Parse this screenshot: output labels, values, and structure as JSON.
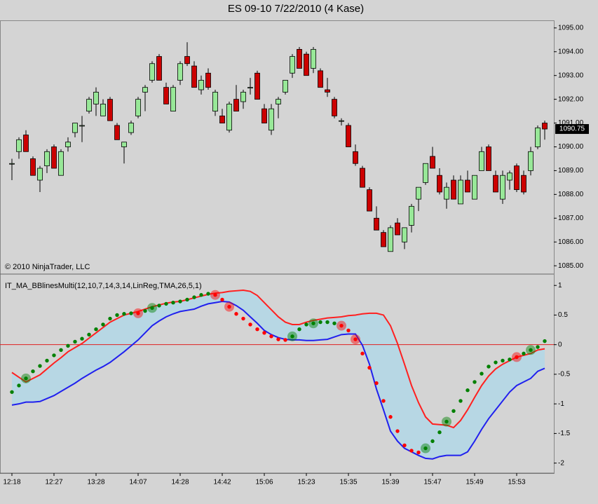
{
  "title": "ES 09-10  7/22/2010 (4 Kase)",
  "chart_data": [
    {
      "type": "candlestick",
      "annotation": "© 2010 NinjaTrader, LLC",
      "categories": [
        "12:18",
        null,
        null,
        null,
        null,
        null,
        "12:27",
        null,
        null,
        null,
        null,
        null,
        "13:28",
        null,
        null,
        null,
        null,
        null,
        "14:07",
        null,
        null,
        null,
        null,
        null,
        "14:28",
        null,
        null,
        null,
        null,
        null,
        "14:42",
        null,
        null,
        null,
        null,
        null,
        "15:06",
        null,
        null,
        null,
        null,
        null,
        "15:23",
        null,
        null,
        null,
        null,
        null,
        "15:35",
        null,
        null,
        null,
        null,
        null,
        "15:39",
        null,
        null,
        null,
        null,
        null,
        "15:47",
        null,
        null,
        null,
        null,
        null,
        "15:49",
        null,
        null,
        null,
        null,
        null,
        "15:53",
        null,
        null,
        null,
        null
      ],
      "open": [
        1089.3,
        1089.8,
        1090.5,
        1089.5,
        1088.6,
        1089.2,
        1090.0,
        1088.8,
        1090.0,
        1090.6,
        1090.9,
        1091.5,
        1091.8,
        1091.3,
        1092.0,
        1090.9,
        1090.0,
        1090.6,
        1091.3,
        1092.3,
        1092.8,
        1093.8,
        1092.5,
        1091.5,
        1092.8,
        1093.8,
        1093.4,
        1092.4,
        1093.1,
        1091.5,
        1091.3,
        1090.7,
        1092.0,
        1091.9,
        1092.5,
        1093.1,
        1091.6,
        1090.7,
        1091.8,
        1092.3,
        1093.1,
        1094.1,
        1093.9,
        1093.3,
        1093.2,
        1092.4,
        1092.0,
        1091.1,
        1090.9,
        1089.8,
        1089.1,
        1088.2,
        1087.0,
        1086.4,
        1085.6,
        1086.8,
        1086.0,
        1086.7,
        1087.8,
        1088.5,
        1089.6,
        1088.8,
        1087.8,
        1088.6,
        1087.6,
        1088.6,
        1087.8,
        1089.0,
        1090.0,
        1088.8,
        1087.8,
        1088.6,
        1089.2,
        1088.8,
        1089.0,
        1090.0,
        1091.0
      ],
      "high": [
        1089.5,
        1090.4,
        1090.7,
        1089.6,
        1089.2,
        1089.9,
        1090.1,
        1089.9,
        1090.4,
        1091.0,
        1091.3,
        1092.1,
        1092.5,
        1092.0,
        1092.1,
        1091.0,
        1090.2,
        1091.1,
        1092.1,
        1092.6,
        1093.6,
        1093.9,
        1092.7,
        1092.6,
        1093.6,
        1094.4,
        1093.6,
        1093.0,
        1093.3,
        1092.4,
        1091.6,
        1091.9,
        1092.6,
        1092.4,
        1092.9,
        1093.2,
        1091.8,
        1091.8,
        1092.1,
        1092.8,
        1093.9,
        1094.2,
        1094.0,
        1094.2,
        1093.3,
        1092.9,
        1092.1,
        1091.2,
        1091.0,
        1090.1,
        1089.2,
        1088.3,
        1087.5,
        1086.5,
        1086.7,
        1087.0,
        1086.6,
        1087.6,
        1088.3,
        1089.3,
        1090.0,
        1089.1,
        1088.5,
        1088.8,
        1088.8,
        1089.0,
        1088.8,
        1090.0,
        1090.1,
        1089.0,
        1089.0,
        1089.0,
        1089.3,
        1089.0,
        1090.0,
        1090.9,
        1091.1
      ],
      "low": [
        1088.6,
        1089.5,
        1089.8,
        1088.8,
        1088.1,
        1088.9,
        1089.1,
        1088.8,
        1089.8,
        1090.4,
        1090.2,
        1091.4,
        1091.3,
        1091.3,
        1091.1,
        1090.3,
        1089.3,
        1090.5,
        1091.2,
        1091.5,
        1092.7,
        1092.8,
        1091.8,
        1091.5,
        1092.6,
        1093.4,
        1092.5,
        1092.2,
        1092.4,
        1091.3,
        1091.0,
        1090.6,
        1091.5,
        1091.6,
        1092.2,
        1092.0,
        1091.0,
        1090.5,
        1091.2,
        1092.2,
        1092.9,
        1093.3,
        1093.0,
        1093.1,
        1092.5,
        1092.1,
        1091.2,
        1090.9,
        1090.0,
        1089.2,
        1088.3,
        1087.3,
        1086.5,
        1085.8,
        1085.6,
        1086.3,
        1085.7,
        1086.4,
        1087.3,
        1088.4,
        1089.1,
        1088.0,
        1087.4,
        1087.8,
        1087.6,
        1088.1,
        1087.8,
        1089.0,
        1089.0,
        1088.1,
        1087.6,
        1088.2,
        1088.1,
        1088.0,
        1088.8,
        1089.9,
        1090.3
      ],
      "close": [
        1089.3,
        1090.3,
        1089.8,
        1088.8,
        1089.1,
        1089.8,
        1089.1,
        1089.8,
        1090.2,
        1091.0,
        1090.9,
        1092.0,
        1092.3,
        1091.8,
        1091.1,
        1090.3,
        1090.2,
        1091.0,
        1092.0,
        1092.5,
        1093.5,
        1092.8,
        1091.8,
        1092.5,
        1093.5,
        1093.5,
        1092.5,
        1092.8,
        1092.5,
        1092.3,
        1091.0,
        1091.8,
        1091.5,
        1092.3,
        1092.5,
        1092.0,
        1091.0,
        1091.6,
        1092.0,
        1092.8,
        1093.8,
        1093.3,
        1093.0,
        1094.1,
        1092.5,
        1092.3,
        1091.3,
        1091.1,
        1090.0,
        1089.3,
        1088.3,
        1087.3,
        1086.5,
        1085.8,
        1086.6,
        1086.3,
        1086.6,
        1087.5,
        1088.3,
        1089.3,
        1089.1,
        1088.1,
        1088.3,
        1087.8,
        1088.6,
        1088.1,
        1088.8,
        1089.8,
        1089.0,
        1088.1,
        1088.8,
        1088.9,
        1088.2,
        1088.1,
        1089.8,
        1090.8,
        1090.75
      ],
      "up_color": "#98e898",
      "down_color": "#cc0000",
      "ylim": [
        1084.68,
        1095.29
      ],
      "yticks": [
        {
          "value": 1085,
          "label": "1085.00"
        },
        {
          "value": 1086,
          "label": "1086.00"
        },
        {
          "value": 1087,
          "label": "1087.00"
        },
        {
          "value": 1088,
          "label": "1088.00"
        },
        {
          "value": 1089,
          "label": "1089.00"
        },
        {
          "value": 1090,
          "label": "1090.00"
        },
        {
          "value": 1091,
          "label": "1091.00"
        },
        {
          "value": 1092,
          "label": "1092.00"
        },
        {
          "value": 1093,
          "label": "1093.00"
        },
        {
          "value": 1094,
          "label": "1094.00"
        },
        {
          "value": 1095,
          "label": "1095.00"
        }
      ]
    },
    {
      "type": "line",
      "title": "IT_MA_BBlinesMulti(12,10,7,14,3,14,LinReg,TMA,26,5,1)",
      "band_color": "#b7d7e4",
      "zero_line_color": "#e02020",
      "series": [
        {
          "name": "upper",
          "color": "#ff2020",
          "values": [
            -0.47,
            -0.55,
            -0.63,
            -0.57,
            -0.51,
            -0.41,
            -0.31,
            -0.22,
            -0.12,
            -0.05,
            0.02,
            0.11,
            0.2,
            0.29,
            0.38,
            0.44,
            0.5,
            0.53,
            0.56,
            0.6,
            0.64,
            0.67,
            0.7,
            0.72,
            0.73,
            0.76,
            0.79,
            0.82,
            0.85,
            0.87,
            0.88,
            0.9,
            0.91,
            0.92,
            0.9,
            0.83,
            0.71,
            0.59,
            0.47,
            0.38,
            0.34,
            0.34,
            0.38,
            0.41,
            0.43,
            0.45,
            0.46,
            0.47,
            0.49,
            0.5,
            0.52,
            0.53,
            0.53,
            0.5,
            0.32,
            0.02,
            -0.33,
            -0.69,
            -0.98,
            -1.22,
            -1.34,
            -1.35,
            -1.36,
            -1.4,
            -1.28,
            -1.1,
            -0.89,
            -0.69,
            -0.53,
            -0.41,
            -0.33,
            -0.27,
            -0.21,
            -0.18,
            -0.15,
            -0.09,
            -0.07
          ]
        },
        {
          "name": "lower",
          "color": "#2020ee",
          "values": [
            -1.02,
            -1.0,
            -0.97,
            -0.97,
            -0.96,
            -0.91,
            -0.86,
            -0.79,
            -0.72,
            -0.65,
            -0.57,
            -0.5,
            -0.43,
            -0.37,
            -0.3,
            -0.21,
            -0.12,
            -0.02,
            0.08,
            0.2,
            0.32,
            0.4,
            0.47,
            0.52,
            0.56,
            0.58,
            0.6,
            0.65,
            0.69,
            0.71,
            0.73,
            0.72,
            0.66,
            0.58,
            0.47,
            0.36,
            0.24,
            0.17,
            0.12,
            0.09,
            0.08,
            0.08,
            0.07,
            0.07,
            0.08,
            0.09,
            0.13,
            0.17,
            0.18,
            0.18,
            -0.01,
            -0.33,
            -0.75,
            -1.1,
            -1.46,
            -1.63,
            -1.75,
            -1.81,
            -1.87,
            -1.92,
            -1.93,
            -1.89,
            -1.87,
            -1.87,
            -1.87,
            -1.81,
            -1.63,
            -1.43,
            -1.25,
            -1.1,
            -0.95,
            -0.8,
            -0.69,
            -0.63,
            -0.57,
            -0.45,
            -0.4
          ]
        },
        {
          "name": "signal",
          "style": "dots",
          "values": [
            -0.8,
            -0.69,
            -0.57,
            -0.45,
            -0.36,
            -0.27,
            -0.18,
            -0.09,
            -0.02,
            0.05,
            0.1,
            0.17,
            0.26,
            0.34,
            0.44,
            0.5,
            0.52,
            0.53,
            0.53,
            0.57,
            0.62,
            0.66,
            0.69,
            0.71,
            0.73,
            0.76,
            0.8,
            0.84,
            0.86,
            0.84,
            0.76,
            0.64,
            0.52,
            0.44,
            0.34,
            0.26,
            0.2,
            0.14,
            0.09,
            0.08,
            0.14,
            0.26,
            0.34,
            0.36,
            0.38,
            0.38,
            0.36,
            0.32,
            0.24,
            0.09,
            -0.15,
            -0.39,
            -0.65,
            -0.95,
            -1.22,
            -1.46,
            -1.7,
            -1.79,
            -1.82,
            -1.75,
            -1.63,
            -1.48,
            -1.3,
            -1.12,
            -0.95,
            -0.77,
            -0.63,
            -0.49,
            -0.37,
            -0.3,
            -0.27,
            -0.25,
            -0.21,
            -0.15,
            -0.09,
            -0.04,
            0.06
          ],
          "colors": [
            "#008000",
            "#008000",
            "#008000",
            "#008000",
            "#008000",
            "#008000",
            "#008000",
            "#008000",
            "#008000",
            "#008000",
            "#008000",
            "#008000",
            "#008000",
            "#008000",
            "#008000",
            "#008000",
            "#008000",
            "#008000",
            "#ff0000",
            "#008000",
            "#008000",
            "#008000",
            "#008000",
            "#008000",
            "#008000",
            "#008000",
            "#008000",
            "#008000",
            "#008000",
            "#ff0000",
            "#ff0000",
            "#ff0000",
            "#ff0000",
            "#ff0000",
            "#ff0000",
            "#ff0000",
            "#ff0000",
            "#ff0000",
            "#ff0000",
            "#ff0000",
            "#008000",
            "#008000",
            "#008000",
            "#008000",
            "#008000",
            "#008000",
            "#008000",
            "#ff0000",
            "#ff0000",
            "#ff0000",
            "#ff0000",
            "#ff0000",
            "#ff0000",
            "#ff0000",
            "#ff0000",
            "#ff0000",
            "#ff0000",
            "#ff0000",
            "#ff0000",
            "#008000",
            "#008000",
            "#008000",
            "#008000",
            "#008000",
            "#008000",
            "#008000",
            "#008000",
            "#008000",
            "#008000",
            "#008000",
            "#008000",
            "#008000",
            "#ff0000",
            "#008000",
            "#008000",
            "#008000",
            "#008000"
          ],
          "signals": [
            2,
            18,
            20,
            29,
            31,
            40,
            43,
            47,
            49,
            59,
            62,
            72,
            74
          ]
        }
      ],
      "ylim": [
        -2.17,
        1.18
      ],
      "yticks": [
        1,
        0.5,
        0,
        -0.5,
        -1,
        -1.5,
        -2
      ]
    }
  ]
}
